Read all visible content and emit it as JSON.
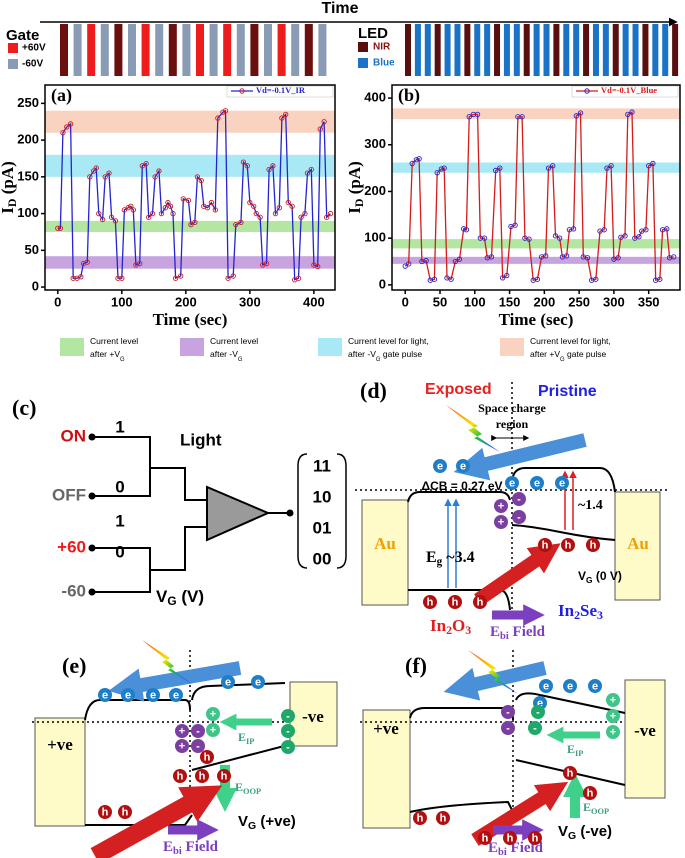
{
  "timing": {
    "title": "Time",
    "gate": {
      "label": "Gate",
      "items": [
        {
          "label": "+60V",
          "color": "#ee1c1c"
        },
        {
          "label": "-60V",
          "color": "#8a9bb5"
        }
      ],
      "bars": [
        "#6b0f0f",
        "#8a9bb5",
        "#ee1c1c",
        "#8a9bb5",
        "#6b0f0f",
        "#8a9bb5",
        "#ee1c1c",
        "#8a9bb5",
        "#6b0f0f",
        "#8a9bb5",
        "#ee1c1c",
        "#8a9bb5",
        "#ee1c1c",
        "#8a9bb5",
        "#6b0f0f",
        "#8a9bb5",
        "#ee1c1c",
        "#8a9bb5",
        "#6b0f0f",
        "#8a9bb5"
      ]
    },
    "led": {
      "label": "LED",
      "items": [
        {
          "label": "NIR",
          "color": "#5a0f0f",
          "label_color": "#8b1010"
        },
        {
          "label": "Blue",
          "color": "#1a73c7",
          "label_color": "#1a73c7"
        }
      ],
      "bars": [
        "#5a0f0f",
        "#1a73c7",
        "#1a73c7",
        "#5a0f0f",
        "#1a73c7",
        "#1a73c7",
        "#5a0f0f",
        "#1a73c7",
        "#1a73c7",
        "#5a0f0f",
        "#1a73c7",
        "#1a73c7",
        "#5a0f0f",
        "#1a73c7",
        "#1a73c7",
        "#5a0f0f",
        "#1a73c7",
        "#1a73c7",
        "#5a0f0f",
        "#1a73c7",
        "#1a73c7",
        "#5a0f0f",
        "#1a73c7",
        "#1a73c7",
        "#5a0f0f",
        "#1a73c7",
        "#1a73c7",
        "#5a0f0f"
      ]
    }
  },
  "chart_data": [
    {
      "type": "line",
      "label": "(a)",
      "xlabel": "Time (sec)",
      "ylabel": [
        "I",
        {
          "sub": "D"
        },
        " (pA)"
      ],
      "xlim": [
        -20,
        433
      ],
      "ylim": [
        -4,
        275
      ],
      "xticks": [
        0,
        100,
        200,
        300,
        400
      ],
      "yticks": [
        0,
        50,
        100,
        150,
        200,
        250
      ],
      "bands": [
        {
          "range": [
            210,
            240
          ],
          "color": "#f9d3bf"
        },
        {
          "range": [
            150,
            180
          ],
          "color": "#a9e9f6"
        },
        {
          "range": [
            75,
            90
          ],
          "color": "#b3e6a0"
        },
        {
          "range": [
            25,
            42
          ],
          "color": "#c7a3e0"
        }
      ],
      "x": [
        0,
        4,
        8,
        14,
        20,
        24,
        30,
        36,
        40,
        46,
        50,
        56,
        60,
        64,
        70,
        74,
        80,
        84,
        90,
        94,
        100,
        104,
        110,
        114,
        118,
        122,
        128,
        132,
        138,
        142,
        148,
        152,
        158,
        162,
        168,
        172,
        176,
        180,
        184,
        192,
        196,
        204,
        208,
        214,
        218,
        224,
        228,
        234,
        240,
        246,
        250,
        258,
        262,
        266,
        274,
        278,
        286,
        290,
        296,
        300,
        306,
        310,
        316,
        320,
        326,
        330,
        336,
        340,
        346,
        350,
        356,
        360,
        366,
        370,
        376,
        380,
        386,
        390,
        396,
        400,
        406,
        410,
        416,
        420,
        426
      ],
      "series": [
        {
          "name": "Vd=-0.1V_IR",
          "color": "#2424d0",
          "marker_color": "#d41c1c",
          "values": [
            80,
            80,
            210,
            218,
            222,
            12,
            12,
            14,
            32,
            34,
            150,
            158,
            162,
            100,
            92,
            150,
            155,
            95,
            90,
            12,
            12,
            105,
            108,
            110,
            105,
            30,
            32,
            165,
            168,
            95,
            100,
            150,
            158,
            100,
            108,
            115,
            110,
            100,
            12,
            15,
            120,
            118,
            85,
            88,
            150,
            145,
            110,
            108,
            115,
            105,
            230,
            238,
            240,
            12,
            15,
            85,
            88,
            170,
            165,
            115,
            110,
            100,
            95,
            30,
            32,
            160,
            165,
            100,
            108,
            230,
            235,
            115,
            110,
            10,
            12,
            95,
            100,
            155,
            160,
            30,
            28,
            215,
            225,
            95,
            100
          ]
        }
      ]
    },
    {
      "type": "line",
      "label": "(b)",
      "xlabel": "Time (sec)",
      "ylabel": [
        "I",
        {
          "sub": "D"
        },
        " (pA)"
      ],
      "xlim": [
        -19,
        395
      ],
      "ylim": [
        -11,
        428
      ],
      "xticks": [
        0,
        50,
        100,
        150,
        200,
        250,
        300,
        350
      ],
      "yticks": [
        0,
        100,
        200,
        300,
        400
      ],
      "bands": [
        {
          "range": [
            355,
            378
          ],
          "color": "#f9d3bf"
        },
        {
          "range": [
            240,
            262
          ],
          "color": "#a9e9f6"
        },
        {
          "range": [
            78,
            98
          ],
          "color": "#b3e6a0"
        },
        {
          "range": [
            45,
            60
          ],
          "color": "#c7a3e0"
        }
      ],
      "x": [
        0,
        5,
        10,
        16,
        20,
        24,
        30,
        36,
        42,
        46,
        52,
        56,
        60,
        66,
        72,
        78,
        84,
        88,
        92,
        98,
        104,
        108,
        114,
        118,
        124,
        130,
        136,
        140,
        146,
        152,
        158,
        162,
        168,
        172,
        178,
        184,
        190,
        196,
        202,
        206,
        212,
        216,
        222,
        226,
        232,
        236,
        242,
        246,
        252,
        256,
        262,
        268,
        274,
        280,
        286,
        290,
        296,
        300,
        306,
        310,
        316,
        320,
        326,
        330,
        336,
        340,
        346,
        350,
        356,
        360,
        366,
        370,
        376,
        380,
        386
      ],
      "series": [
        {
          "name": "Vd=-0.1V_Blue",
          "color": "#d41c1c",
          "marker_color": "#2424d0",
          "values": [
            40,
            45,
            260,
            268,
            270,
            50,
            52,
            10,
            12,
            240,
            248,
            250,
            15,
            12,
            50,
            55,
            120,
            118,
            360,
            365,
            365,
            100,
            100,
            58,
            60,
            245,
            250,
            15,
            20,
            125,
            128,
            360,
            360,
            100,
            98,
            10,
            12,
            60,
            62,
            250,
            255,
            105,
            100,
            60,
            62,
            118,
            120,
            362,
            368,
            60,
            58,
            10,
            12,
            115,
            118,
            250,
            255,
            55,
            58,
            102,
            105,
            365,
            370,
            100,
            103,
            115,
            118,
            255,
            260,
            10,
            12,
            118,
            120,
            58,
            60
          ]
        }
      ]
    }
  ],
  "band_legend": [
    {
      "color": "#b3e6a0",
      "lines": [
        [
          "Current level"
        ],
        [
          "after +V",
          {
            "sub": "G"
          }
        ]
      ]
    },
    {
      "color": "#c7a3e0",
      "lines": [
        [
          "Current level"
        ],
        [
          "after -V",
          {
            "sub": "G"
          }
        ]
      ]
    },
    {
      "color": "#a9e9f6",
      "lines": [
        [
          "Current level for light,"
        ],
        [
          "after -V",
          {
            "sub": "G"
          },
          " gate pulse"
        ]
      ]
    },
    {
      "color": "#f9d3bf",
      "lines": [
        [
          "Current level for light,"
        ],
        [
          "after +V",
          {
            "sub": "G"
          },
          " gate pulse"
        ]
      ]
    }
  ],
  "symbols": {
    "electron": "e",
    "hole": "h",
    "plus": "+",
    "minus": "-"
  },
  "panel_c": {
    "label": "(c)",
    "inputs": [
      {
        "text": "ON",
        "color": "#cc1010"
      },
      {
        "text": "OFF",
        "color": "#666666"
      },
      {
        "text": "+60",
        "color": "#ee1c1c"
      },
      {
        "text": "-60",
        "color": "#666666"
      }
    ],
    "bits": [
      "1",
      "0",
      "1",
      "0"
    ],
    "light": "Light",
    "vg": [
      "V",
      {
        "sub": "G"
      },
      " (V)"
    ],
    "outputs": [
      "11",
      "10",
      "01",
      "00"
    ]
  },
  "panel_d": {
    "label": "(d)",
    "exposed": "Exposed",
    "pristine": "Pristine",
    "space_charge": [
      "Space charge",
      "region"
    ],
    "delta_cb": "ΔCB = 0.27 eV",
    "metal": "Au",
    "eg": [
      "E",
      {
        "sub": "g"
      },
      " ~3.4"
    ],
    "gap": "~1.4",
    "vg": [
      "V",
      {
        "sub": "G"
      },
      " (0 V)"
    ],
    "left_material": [
      "In",
      {
        "sub": "2"
      },
      "O",
      {
        "sub": "3"
      }
    ],
    "right_material": [
      "In",
      {
        "sub": "2"
      },
      "Se",
      {
        "sub": "3"
      }
    ],
    "field": [
      "E",
      {
        "sub": "bi"
      },
      " Field"
    ]
  },
  "panel_e": {
    "label": "(e)",
    "left": "+ve",
    "right": "-ve",
    "e_ip": [
      "E",
      {
        "sub": "IP"
      }
    ],
    "e_oop": [
      "E",
      {
        "sub": "OOP"
      }
    ],
    "vg": [
      "V",
      {
        "sub": "G"
      },
      " (+ve)"
    ],
    "field": [
      "E",
      {
        "sub": "bi"
      },
      " Field"
    ]
  },
  "panel_f": {
    "label": "(f)",
    "left": "+ve",
    "right": "-ve",
    "e_ip": [
      "E",
      {
        "sub": "IP"
      }
    ],
    "e_oop": [
      "E",
      {
        "sub": "OOP"
      }
    ],
    "vg": [
      "V",
      {
        "sub": "G"
      },
      " (-ve)"
    ],
    "field": [
      "E",
      {
        "sub": "bi"
      },
      " Field"
    ]
  }
}
